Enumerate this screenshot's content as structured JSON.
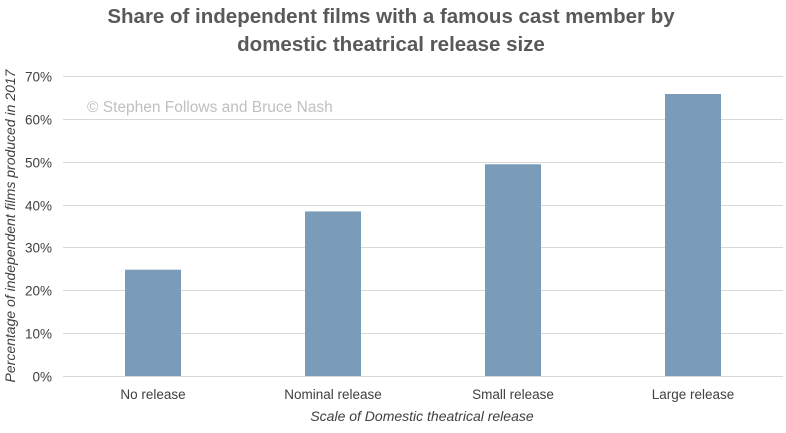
{
  "chart_data": {
    "type": "bar",
    "title": "Share of independent films with a famous cast member by domestic theatrical release size",
    "title_lines": [
      "Share of independent films with a famous cast member by",
      "domestic theatrical release size"
    ],
    "watermark": "© Stephen Follows and Bruce Nash",
    "xlabel": "Scale of Domestic theatrical release",
    "ylabel": "Percentage of independent films produced in 2017",
    "categories": [
      "No release",
      "Nominal release",
      "Small release",
      "Large release"
    ],
    "values": [
      0.248,
      0.384,
      0.494,
      0.658
    ],
    "ylim": [
      0,
      0.7
    ],
    "yticks": [
      0,
      0.1,
      0.2,
      0.3,
      0.4,
      0.5,
      0.6,
      0.7
    ],
    "ytick_labels": [
      "0%",
      "10%",
      "20%",
      "30%",
      "40%",
      "50%",
      "60%",
      "70%"
    ],
    "grid": true,
    "legend": "none",
    "bar_color": "#7a9cb8",
    "grid_color": "#d9d9d9"
  }
}
